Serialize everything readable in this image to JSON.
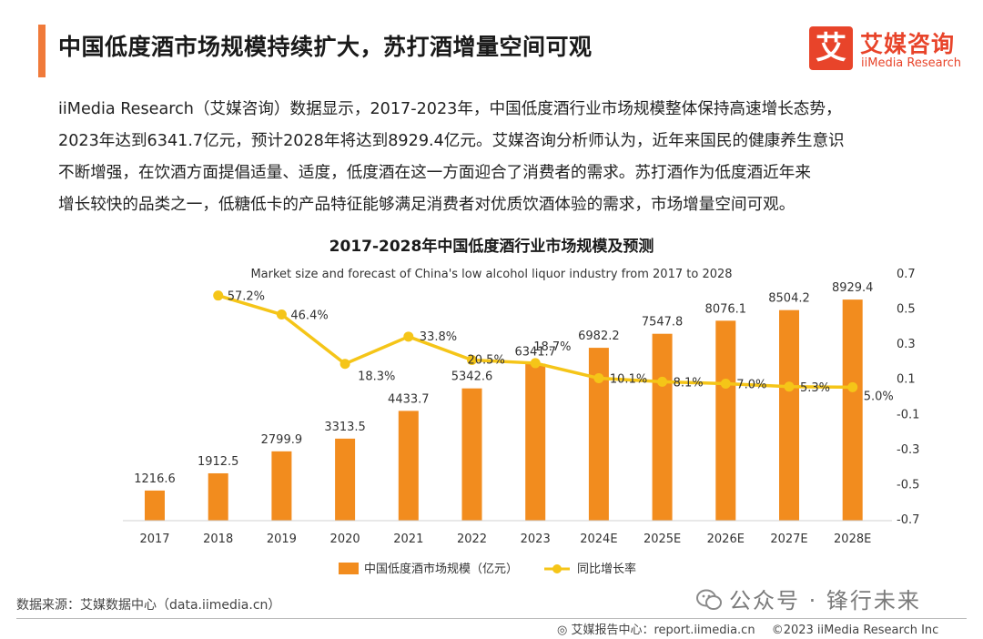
{
  "headline": "中国低度酒市场规模持续扩大，苏打酒增量空间可观",
  "logo": {
    "mark": "艾",
    "name_cn": "艾媒咨询",
    "name_en": "iiMedia Research"
  },
  "intro_lines": [
    "iiMedia Research（艾媒咨询）数据显示，2017-2023年，中国低度酒行业市场规模整体保持高速增长态势，",
    "2023年达到6341.7亿元，预计2028年将达到8929.4亿元。艾媒咨询分析师认为，近年来国民的健康养生意识",
    "不断增强，在饮酒方面提倡适量、适度，低度酒在这一方面迎合了消费者的需求。苏打酒作为低度酒近年来",
    "增长较快的品类之一，低糖低卡的产品特征能够满足消费者对优质饮酒体验的需求，市场增量空间可观。"
  ],
  "chart_data": {
    "type": "bar",
    "title": "2017-2028年中国低度酒行业市场规模及预测",
    "subtitle": "Market size and forecast of China's low alcohol liquor industry from 2017 to 2028",
    "categories": [
      "2017",
      "2018",
      "2019",
      "2020",
      "2021",
      "2022",
      "2023",
      "2024E",
      "2025E",
      "2026E",
      "2027E",
      "2028E"
    ],
    "series": [
      {
        "name": "中国低度酒市场规模（亿元）",
        "type": "bar",
        "axis": "left",
        "color": "#f28c1e",
        "values": [
          1216.6,
          1912.5,
          2799.9,
          3313.5,
          4433.7,
          5342.6,
          6341.7,
          6982.2,
          7547.8,
          8076.1,
          8504.2,
          8929.4
        ],
        "labels": [
          "1216.6",
          "1912.5",
          "2799.9",
          "3313.5",
          "4433.7",
          "5342.6",
          "6341.7",
          "6982.2",
          "7547.8",
          "8076.1",
          "8504.2",
          "8929.4"
        ]
      },
      {
        "name": "同比增长率",
        "type": "line",
        "axis": "right",
        "color": "#f5c518",
        "values": [
          null,
          0.572,
          0.464,
          0.183,
          0.338,
          0.205,
          0.187,
          0.101,
          0.081,
          0.07,
          0.053,
          0.05
        ],
        "labels": [
          null,
          "57.2%",
          "46.4%",
          "18.3%",
          "33.8%",
          "20.5%",
          "18.7%",
          "10.1%",
          "8.1%",
          "7.0%",
          "5.3%",
          "5.0%"
        ]
      }
    ],
    "y_left_range": [
      0,
      10000
    ],
    "y_right_range": [
      -0.7,
      0.7
    ],
    "y_right_ticks": [
      "0.7",
      "0.5",
      "0.3",
      "0.1",
      "-0.1",
      "-0.3",
      "-0.5",
      "-0.7"
    ],
    "legend_position": "bottom-center",
    "grid": false
  },
  "source": "数据来源：艾媒数据中心（data.iimedia.cn）",
  "watermark": "公众号 · 锋行未来",
  "footer": {
    "report": "艾媒报告中心：report.iimedia.cn",
    "copyright": "©2023  iiMedia Research  Inc"
  },
  "colors": {
    "accent": "#f07a3a",
    "brand": "#e8442a",
    "bar": "#f28c1e",
    "line": "#f5c518"
  }
}
